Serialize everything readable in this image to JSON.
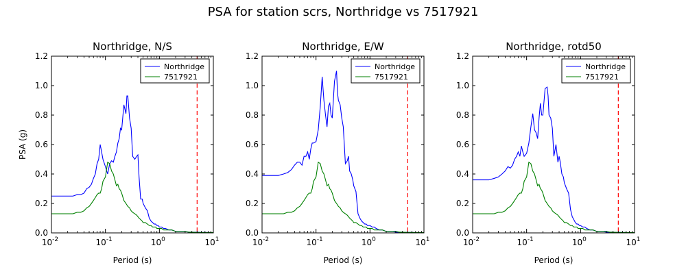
{
  "figure": {
    "suptitle": "PSA for station scrs, Northridge vs 7517921",
    "colors": {
      "series1": "#0000ff",
      "series2": "#008000",
      "marker": "#ff0000"
    }
  },
  "chart_data": [
    {
      "type": "line",
      "title": "Northridge, N/S",
      "xlabel": "Period (s)",
      "ylabel": "PSA (g)",
      "xscale": "log",
      "xlim": [
        0.01,
        10
      ],
      "ylim": [
        0,
        1.2
      ],
      "xticks": [
        {
          "value": 0.01,
          "label_base": "10",
          "label_exp": "-2"
        },
        {
          "value": 0.1,
          "label_base": "10",
          "label_exp": "-1"
        },
        {
          "value": 1,
          "label_base": "10",
          "label_exp": "0"
        },
        {
          "value": 10,
          "label_base": "10",
          "label_exp": "1"
        }
      ],
      "yticks": [
        {
          "value": 0.0,
          "label": "0.0"
        },
        {
          "value": 0.2,
          "label": "0.2"
        },
        {
          "value": 0.4,
          "label": "0.4"
        },
        {
          "value": 0.6,
          "label": "0.6"
        },
        {
          "value": 0.8,
          "label": "0.8"
        },
        {
          "value": 1.0,
          "label": "1.0"
        },
        {
          "value": 1.2,
          "label": "1.2"
        }
      ],
      "legend": "top-right",
      "vline": {
        "x": 5,
        "style": "dashed"
      },
      "series": [
        {
          "name": "Northridge",
          "x": [
            0.01,
            0.015,
            0.02,
            0.025,
            0.03,
            0.035,
            0.04,
            0.045,
            0.05,
            0.055,
            0.06,
            0.065,
            0.07,
            0.075,
            0.08,
            0.085,
            0.09,
            0.1,
            0.11,
            0.12,
            0.13,
            0.14,
            0.15,
            0.16,
            0.17,
            0.18,
            0.19,
            0.2,
            0.22,
            0.24,
            0.25,
            0.26,
            0.28,
            0.3,
            0.32,
            0.35,
            0.38,
            0.4,
            0.42,
            0.45,
            0.48,
            0.5,
            0.55,
            0.6,
            0.65,
            0.7,
            0.75,
            0.8,
            0.85,
            0.9,
            0.95,
            1.0,
            1.1,
            1.2,
            1.3,
            1.5,
            1.7,
            2.0,
            2.2,
            2.4,
            2.6,
            3.0,
            3.5,
            4.0,
            5.0,
            6.0,
            7.5,
            10.0
          ],
          "y": [
            0.25,
            0.25,
            0.25,
            0.25,
            0.26,
            0.26,
            0.27,
            0.3,
            0.31,
            0.33,
            0.37,
            0.4,
            0.47,
            0.5,
            0.6,
            0.55,
            0.5,
            0.45,
            0.4,
            0.47,
            0.49,
            0.48,
            0.52,
            0.55,
            0.61,
            0.64,
            0.71,
            0.7,
            0.87,
            0.81,
            0.93,
            0.93,
            0.78,
            0.71,
            0.52,
            0.5,
            0.52,
            0.53,
            0.38,
            0.23,
            0.23,
            0.2,
            0.17,
            0.15,
            0.1,
            0.08,
            0.07,
            0.06,
            0.06,
            0.05,
            0.05,
            0.04,
            0.04,
            0.03,
            0.03,
            0.02,
            0.02,
            0.01,
            0.01,
            0.01,
            0.01,
            0.01,
            0.005,
            0.005,
            0.005,
            0.003,
            0.003,
            0.002
          ]
        },
        {
          "name": "7517921",
          "x": [
            0.01,
            0.015,
            0.02,
            0.025,
            0.03,
            0.035,
            0.04,
            0.045,
            0.05,
            0.055,
            0.06,
            0.065,
            0.07,
            0.075,
            0.08,
            0.085,
            0.09,
            0.1,
            0.11,
            0.12,
            0.13,
            0.14,
            0.15,
            0.16,
            0.17,
            0.18,
            0.19,
            0.2,
            0.22,
            0.24,
            0.25,
            0.26,
            0.28,
            0.3,
            0.32,
            0.35,
            0.38,
            0.4,
            0.42,
            0.45,
            0.48,
            0.5,
            0.55,
            0.6,
            0.65,
            0.7,
            0.75,
            0.8,
            0.85,
            0.9,
            0.95,
            1.0,
            1.1,
            1.2,
            1.3,
            1.5,
            1.7,
            2.0,
            2.2,
            2.4,
            2.6,
            3.0,
            3.5,
            4.0,
            5.0,
            6.0,
            7.5,
            10.0
          ],
          "y": [
            0.13,
            0.13,
            0.13,
            0.13,
            0.14,
            0.14,
            0.15,
            0.17,
            0.18,
            0.2,
            0.22,
            0.24,
            0.26,
            0.27,
            0.27,
            0.3,
            0.35,
            0.38,
            0.48,
            0.47,
            0.42,
            0.4,
            0.36,
            0.32,
            0.33,
            0.3,
            0.29,
            0.27,
            0.22,
            0.2,
            0.19,
            0.18,
            0.17,
            0.15,
            0.14,
            0.13,
            0.12,
            0.11,
            0.1,
            0.09,
            0.08,
            0.07,
            0.07,
            0.06,
            0.05,
            0.05,
            0.04,
            0.04,
            0.04,
            0.03,
            0.03,
            0.03,
            0.03,
            0.02,
            0.02,
            0.02,
            0.02,
            0.01,
            0.01,
            0.01,
            0.01,
            0.01,
            0.005,
            0.005,
            0.003,
            0.003,
            0.002,
            0.002
          ]
        }
      ]
    },
    {
      "type": "line",
      "title": "Northridge, E/W",
      "xlabel": "Period (s)",
      "ylabel": "",
      "xscale": "log",
      "xlim": [
        0.01,
        10
      ],
      "ylim": [
        0,
        1.2
      ],
      "xticks": [
        {
          "value": 0.01,
          "label_base": "10",
          "label_exp": "-2"
        },
        {
          "value": 0.1,
          "label_base": "10",
          "label_exp": "-1"
        },
        {
          "value": 1,
          "label_base": "10",
          "label_exp": "0"
        },
        {
          "value": 10,
          "label_base": "10",
          "label_exp": "1"
        }
      ],
      "yticks": [
        {
          "value": 0.0,
          "label": "0.0"
        },
        {
          "value": 0.2,
          "label": "0.2"
        },
        {
          "value": 0.4,
          "label": "0.4"
        },
        {
          "value": 0.6,
          "label": "0.6"
        },
        {
          "value": 0.8,
          "label": "0.8"
        },
        {
          "value": 1.0,
          "label": "1.0"
        },
        {
          "value": 1.2,
          "label": "1.2"
        }
      ],
      "legend": "top-right",
      "vline": {
        "x": 5,
        "style": "dashed"
      },
      "series": [
        {
          "name": "Northridge",
          "x": [
            0.01,
            0.015,
            0.02,
            0.025,
            0.03,
            0.035,
            0.04,
            0.045,
            0.05,
            0.055,
            0.06,
            0.065,
            0.07,
            0.075,
            0.08,
            0.085,
            0.09,
            0.1,
            0.11,
            0.12,
            0.13,
            0.14,
            0.15,
            0.16,
            0.17,
            0.18,
            0.19,
            0.2,
            0.22,
            0.24,
            0.25,
            0.26,
            0.28,
            0.3,
            0.32,
            0.35,
            0.38,
            0.4,
            0.42,
            0.45,
            0.48,
            0.5,
            0.55,
            0.6,
            0.65,
            0.7,
            0.75,
            0.8,
            0.85,
            0.9,
            0.95,
            1.0,
            1.1,
            1.2,
            1.3,
            1.5,
            1.7,
            2.0,
            2.2,
            2.4,
            2.6,
            3.0,
            3.5,
            4.0,
            5.0,
            6.0,
            7.5,
            10.0
          ],
          "y": [
            0.39,
            0.39,
            0.39,
            0.4,
            0.41,
            0.43,
            0.46,
            0.48,
            0.48,
            0.46,
            0.52,
            0.52,
            0.55,
            0.5,
            0.57,
            0.61,
            0.61,
            0.62,
            0.7,
            0.86,
            1.06,
            0.9,
            0.8,
            0.72,
            0.86,
            0.88,
            0.8,
            0.78,
            1.03,
            1.1,
            0.95,
            0.9,
            0.87,
            0.78,
            0.72,
            0.47,
            0.49,
            0.52,
            0.42,
            0.4,
            0.36,
            0.32,
            0.28,
            0.13,
            0.1,
            0.08,
            0.07,
            0.06,
            0.06,
            0.05,
            0.05,
            0.05,
            0.04,
            0.04,
            0.03,
            0.02,
            0.02,
            0.01,
            0.01,
            0.01,
            0.01,
            0.005,
            0.005,
            0.005,
            0.003,
            0.003,
            0.002,
            0.002
          ]
        },
        {
          "name": "7517921",
          "x": [
            0.01,
            0.015,
            0.02,
            0.025,
            0.03,
            0.035,
            0.04,
            0.045,
            0.05,
            0.055,
            0.06,
            0.065,
            0.07,
            0.075,
            0.08,
            0.085,
            0.09,
            0.1,
            0.11,
            0.12,
            0.13,
            0.14,
            0.15,
            0.16,
            0.17,
            0.18,
            0.19,
            0.2,
            0.22,
            0.24,
            0.25,
            0.26,
            0.28,
            0.3,
            0.32,
            0.35,
            0.38,
            0.4,
            0.42,
            0.45,
            0.48,
            0.5,
            0.55,
            0.6,
            0.65,
            0.7,
            0.75,
            0.8,
            0.85,
            0.9,
            0.95,
            1.0,
            1.1,
            1.2,
            1.3,
            1.5,
            1.7,
            2.0,
            2.2,
            2.4,
            2.6,
            3.0,
            3.5,
            4.0,
            5.0,
            6.0,
            7.5,
            10.0
          ],
          "y": [
            0.13,
            0.13,
            0.13,
            0.13,
            0.14,
            0.14,
            0.15,
            0.17,
            0.18,
            0.2,
            0.22,
            0.24,
            0.26,
            0.27,
            0.27,
            0.3,
            0.35,
            0.38,
            0.48,
            0.47,
            0.42,
            0.4,
            0.36,
            0.32,
            0.33,
            0.3,
            0.29,
            0.27,
            0.22,
            0.2,
            0.19,
            0.18,
            0.17,
            0.15,
            0.14,
            0.13,
            0.12,
            0.11,
            0.1,
            0.09,
            0.08,
            0.07,
            0.07,
            0.06,
            0.05,
            0.05,
            0.04,
            0.04,
            0.04,
            0.03,
            0.03,
            0.03,
            0.03,
            0.02,
            0.02,
            0.02,
            0.02,
            0.01,
            0.01,
            0.01,
            0.01,
            0.01,
            0.005,
            0.005,
            0.003,
            0.003,
            0.002,
            0.002
          ]
        }
      ]
    },
    {
      "type": "line",
      "title": "Northridge, rotd50",
      "xlabel": "Period (s)",
      "ylabel": "",
      "xscale": "log",
      "xlim": [
        0.01,
        10
      ],
      "ylim": [
        0,
        1.2
      ],
      "xticks": [
        {
          "value": 0.01,
          "label_base": "10",
          "label_exp": "-2"
        },
        {
          "value": 0.1,
          "label_base": "10",
          "label_exp": "-1"
        },
        {
          "value": 1,
          "label_base": "10",
          "label_exp": "0"
        },
        {
          "value": 10,
          "label_base": "10",
          "label_exp": "1"
        }
      ],
      "yticks": [
        {
          "value": 0.0,
          "label": "0.0"
        },
        {
          "value": 0.2,
          "label": "0.2"
        },
        {
          "value": 0.4,
          "label": "0.4"
        },
        {
          "value": 0.6,
          "label": "0.6"
        },
        {
          "value": 0.8,
          "label": "0.8"
        },
        {
          "value": 1.0,
          "label": "1.0"
        },
        {
          "value": 1.2,
          "label": "1.2"
        }
      ],
      "legend": "top-right",
      "vline": {
        "x": 5,
        "style": "dashed"
      },
      "series": [
        {
          "name": "Northridge",
          "x": [
            0.01,
            0.015,
            0.02,
            0.025,
            0.03,
            0.035,
            0.04,
            0.045,
            0.05,
            0.055,
            0.06,
            0.065,
            0.07,
            0.075,
            0.08,
            0.085,
            0.09,
            0.1,
            0.11,
            0.12,
            0.13,
            0.14,
            0.15,
            0.16,
            0.17,
            0.18,
            0.19,
            0.2,
            0.22,
            0.24,
            0.25,
            0.26,
            0.28,
            0.3,
            0.32,
            0.35,
            0.38,
            0.4,
            0.42,
            0.45,
            0.48,
            0.5,
            0.55,
            0.6,
            0.65,
            0.7,
            0.75,
            0.8,
            0.85,
            0.9,
            0.95,
            1.0,
            1.1,
            1.2,
            1.3,
            1.5,
            1.7,
            2.0,
            2.2,
            2.4,
            2.6,
            3.0,
            3.5,
            4.0,
            5.0,
            6.0,
            7.5,
            10.0
          ],
          "y": [
            0.36,
            0.36,
            0.36,
            0.37,
            0.38,
            0.4,
            0.42,
            0.45,
            0.44,
            0.46,
            0.5,
            0.52,
            0.55,
            0.52,
            0.59,
            0.55,
            0.52,
            0.54,
            0.61,
            0.72,
            0.81,
            0.7,
            0.68,
            0.64,
            0.78,
            0.88,
            0.8,
            0.8,
            0.98,
            0.99,
            0.93,
            0.8,
            0.78,
            0.71,
            0.52,
            0.6,
            0.48,
            0.52,
            0.48,
            0.4,
            0.38,
            0.34,
            0.3,
            0.27,
            0.16,
            0.11,
            0.09,
            0.07,
            0.06,
            0.06,
            0.05,
            0.05,
            0.04,
            0.04,
            0.03,
            0.02,
            0.02,
            0.01,
            0.01,
            0.01,
            0.01,
            0.005,
            0.005,
            0.005,
            0.003,
            0.003,
            0.002,
            0.002
          ]
        },
        {
          "name": "7517921",
          "x": [
            0.01,
            0.015,
            0.02,
            0.025,
            0.03,
            0.035,
            0.04,
            0.045,
            0.05,
            0.055,
            0.06,
            0.065,
            0.07,
            0.075,
            0.08,
            0.085,
            0.09,
            0.1,
            0.11,
            0.12,
            0.13,
            0.14,
            0.15,
            0.16,
            0.17,
            0.18,
            0.19,
            0.2,
            0.22,
            0.24,
            0.25,
            0.26,
            0.28,
            0.3,
            0.32,
            0.35,
            0.38,
            0.4,
            0.42,
            0.45,
            0.48,
            0.5,
            0.55,
            0.6,
            0.65,
            0.7,
            0.75,
            0.8,
            0.85,
            0.9,
            0.95,
            1.0,
            1.1,
            1.2,
            1.3,
            1.5,
            1.7,
            2.0,
            2.2,
            2.4,
            2.6,
            3.0,
            3.5,
            4.0,
            5.0,
            6.0,
            7.5,
            10.0
          ],
          "y": [
            0.13,
            0.13,
            0.13,
            0.13,
            0.14,
            0.14,
            0.15,
            0.17,
            0.18,
            0.2,
            0.22,
            0.24,
            0.26,
            0.27,
            0.27,
            0.3,
            0.35,
            0.38,
            0.48,
            0.47,
            0.42,
            0.4,
            0.36,
            0.32,
            0.33,
            0.3,
            0.29,
            0.27,
            0.22,
            0.2,
            0.19,
            0.18,
            0.17,
            0.15,
            0.14,
            0.13,
            0.12,
            0.11,
            0.1,
            0.09,
            0.08,
            0.07,
            0.07,
            0.06,
            0.05,
            0.05,
            0.04,
            0.04,
            0.04,
            0.03,
            0.03,
            0.03,
            0.03,
            0.02,
            0.02,
            0.02,
            0.02,
            0.01,
            0.01,
            0.01,
            0.01,
            0.01,
            0.005,
            0.005,
            0.003,
            0.003,
            0.002,
            0.002
          ]
        }
      ]
    }
  ]
}
